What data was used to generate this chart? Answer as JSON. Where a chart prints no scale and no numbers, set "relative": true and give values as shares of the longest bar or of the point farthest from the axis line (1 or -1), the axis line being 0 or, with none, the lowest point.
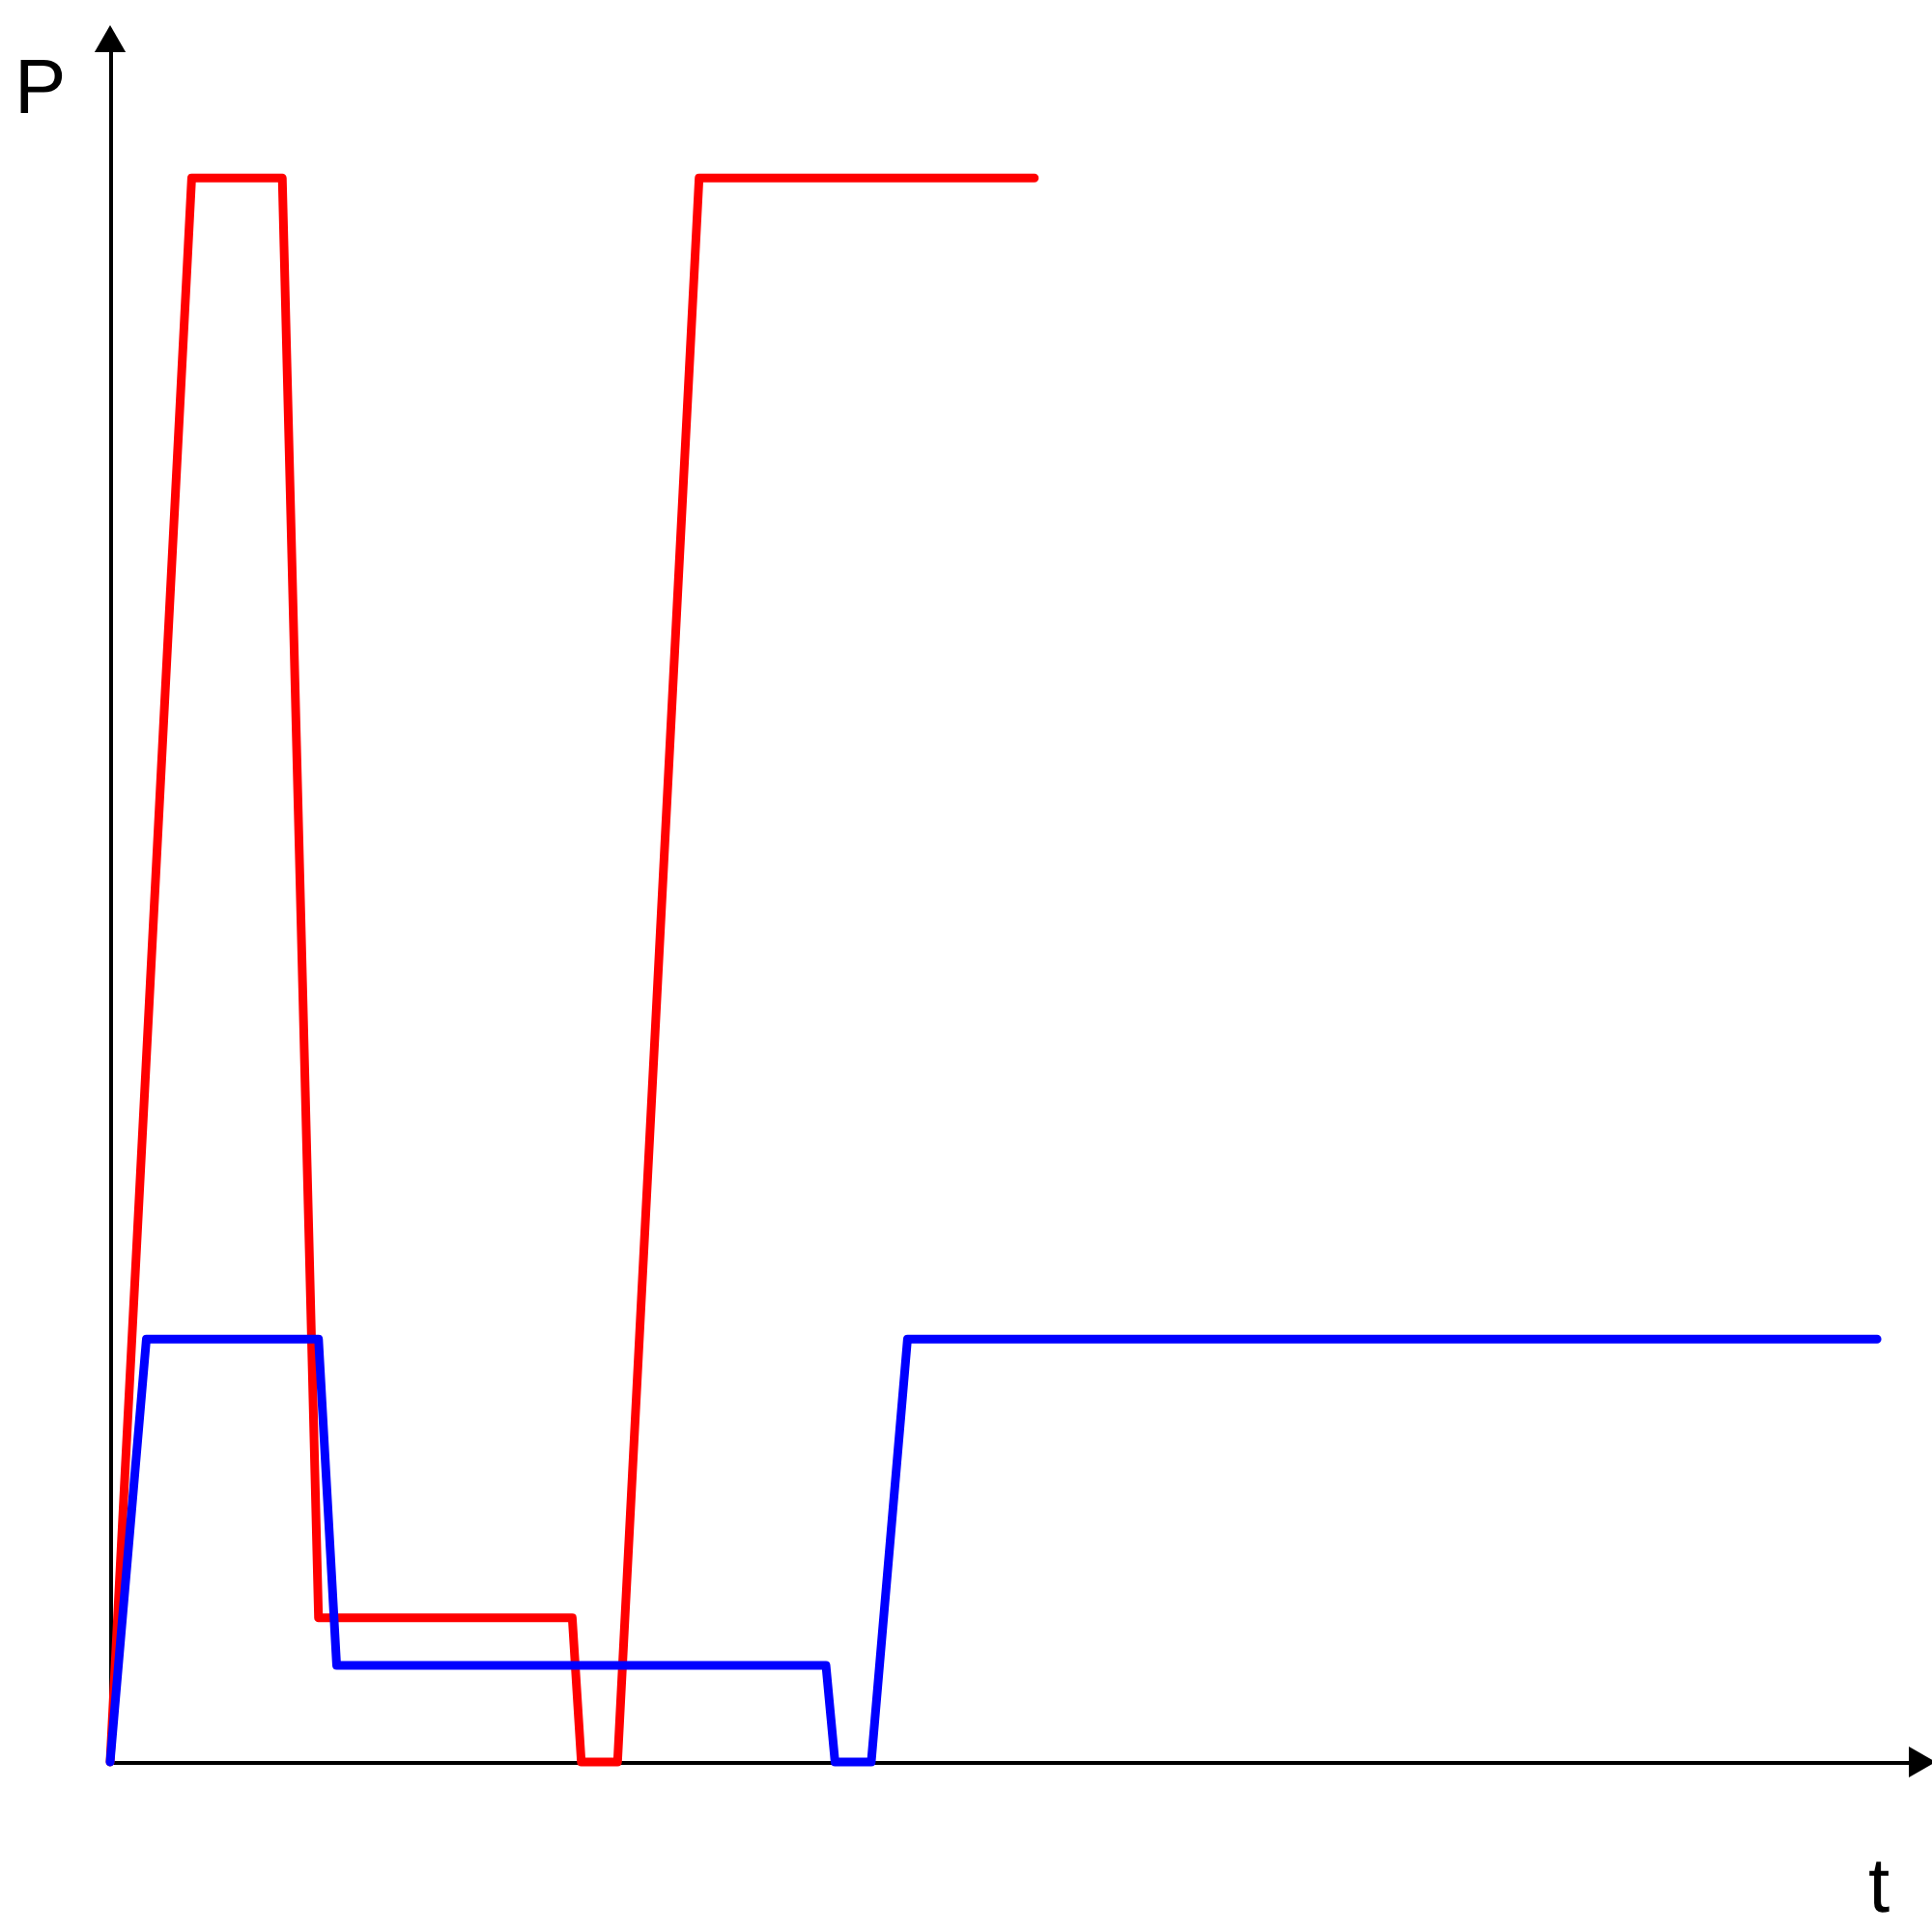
{
  "chart_data": {
    "type": "line",
    "relative": true,
    "xlabel": "t",
    "ylabel": "P",
    "legend": false,
    "grid": false,
    "line_style": "solid",
    "categories": [
      null,
      null,
      null,
      null,
      null,
      null,
      null,
      null,
      null,
      null,
      null,
      null,
      null,
      null,
      null,
      null,
      null,
      null,
      null,
      null,
      null,
      null,
      null,
      null,
      null,
      null,
      null,
      null,
      null,
      null,
      null,
      null,
      null,
      null,
      null,
      null,
      null,
      null,
      null,
      null,
      null,
      null,
      null,
      null,
      null,
      null,
      null,
      null,
      null,
      null,
      null,
      null,
      null,
      null,
      null,
      null,
      null,
      null,
      null,
      null,
      null,
      null,
      null,
      null,
      null,
      null,
      null,
      null,
      null,
      null,
      null,
      null,
      null,
      null,
      null,
      null,
      null,
      null,
      null,
      null,
      null,
      null,
      null,
      null,
      null,
      null,
      null,
      null,
      null,
      null,
      null,
      null,
      null,
      null,
      null,
      null,
      null,
      null,
      null,
      null,
      null,
      null,
      null,
      null,
      null,
      null,
      null,
      null,
      null,
      null,
      null,
      null,
      null,
      null,
      null,
      null,
      null,
      null,
      null,
      null,
      null,
      null,
      null,
      null,
      null,
      null,
      null,
      null,
      null,
      null,
      null,
      null,
      null,
      null,
      null,
      null,
      null,
      null,
      null,
      null,
      null,
      null,
      null,
      null,
      null,
      null,
      null,
      null,
      null,
      null,
      null,
      null,
      null,
      null,
      null,
      null,
      null,
      null,
      null,
      null,
      null,
      null,
      null,
      null,
      null,
      null,
      null,
      null,
      null,
      null,
      null,
      null,
      null,
      null,
      null,
      null,
      null,
      null,
      null,
      null,
      null,
      null,
      null,
      null,
      null,
      null,
      null,
      null,
      null,
      null,
      null,
      null,
      null,
      null,
      null,
      null,
      null,
      null,
      null,
      null,
      null
    ],
    "series": [
      {
        "color": "#ff0000",
        "values": [
          0,
          null,
          null,
          null,
          null,
          null,
          null,
          null,
          null,
          1,
          null,
          null,
          null,
          null,
          null,
          null,
          null,
          null,
          null,
          1,
          null,
          null,
          null,
          0.091,
          null,
          null,
          null,
          null,
          null,
          null,
          null,
          null,
          null,
          null,
          null,
          null,
          null,
          null,
          null,
          null,
          null,
          null,
          null,
          null,
          null,
          null,
          null,
          null,
          null,
          null,
          null,
          0.091,
          0,
          null,
          null,
          null,
          0,
          null,
          null,
          null,
          null,
          null,
          null,
          null,
          null,
          1,
          null,
          null,
          null,
          null,
          null,
          null,
          null,
          null,
          null,
          null,
          null,
          null,
          null,
          null,
          null,
          null,
          null,
          null,
          null,
          null,
          null,
          null,
          null,
          null,
          null,
          null,
          null,
          null,
          null,
          null,
          null,
          null,
          null,
          null,
          null,
          null,
          1,
          null,
          null,
          null,
          null,
          null,
          null,
          null,
          null,
          null,
          null,
          null,
          null,
          null,
          null,
          null,
          null,
          null,
          null,
          null,
          null,
          null,
          null,
          null,
          null,
          null,
          null,
          null,
          null,
          null,
          null,
          null,
          null,
          null,
          null,
          null,
          null,
          null,
          null,
          null,
          null,
          null,
          null,
          null,
          null,
          null,
          null,
          null,
          null,
          null,
          null,
          null,
          null,
          null,
          null,
          null,
          null,
          null,
          null,
          null,
          null,
          null,
          null,
          null,
          null,
          null,
          null,
          null,
          null,
          null,
          null,
          null,
          null,
          null,
          null,
          null,
          null,
          null,
          null,
          null,
          null,
          null,
          null,
          null,
          null,
          null,
          null,
          null,
          null,
          null,
          null,
          null,
          null,
          null,
          null,
          null,
          null,
          null,
          null
        ]
      },
      {
        "color": "#0000ff",
        "values": [
          0,
          null,
          null,
          null,
          0.267,
          null,
          null,
          null,
          null,
          null,
          null,
          null,
          null,
          null,
          null,
          null,
          null,
          null,
          null,
          null,
          null,
          null,
          null,
          0.267,
          null,
          0.061,
          null,
          null,
          null,
          null,
          null,
          null,
          null,
          null,
          null,
          null,
          null,
          null,
          null,
          null,
          null,
          null,
          null,
          null,
          null,
          null,
          null,
          null,
          null,
          null,
          null,
          null,
          null,
          null,
          null,
          null,
          null,
          null,
          null,
          null,
          null,
          null,
          null,
          null,
          null,
          null,
          null,
          null,
          null,
          null,
          null,
          null,
          null,
          null,
          null,
          null,
          null,
          null,
          null,
          0.061,
          0,
          null,
          null,
          null,
          0,
          null,
          null,
          null,
          0.267,
          null,
          null,
          null,
          null,
          null,
          null,
          null,
          null,
          null,
          null,
          null,
          null,
          null,
          null,
          null,
          null,
          null,
          null,
          null,
          null,
          null,
          null,
          null,
          null,
          null,
          null,
          null,
          null,
          null,
          null,
          null,
          null,
          null,
          null,
          null,
          null,
          null,
          null,
          null,
          null,
          null,
          null,
          null,
          null,
          null,
          null,
          null,
          null,
          null,
          null,
          null,
          null,
          null,
          null,
          null,
          null,
          null,
          null,
          null,
          null,
          null,
          null,
          null,
          null,
          null,
          null,
          null,
          null,
          null,
          null,
          null,
          null,
          null,
          null,
          null,
          null,
          null,
          null,
          null,
          null,
          null,
          null,
          null,
          null,
          null,
          null,
          null,
          null,
          null,
          null,
          null,
          null,
          null,
          null,
          null,
          null,
          null,
          null,
          null,
          null,
          null,
          null,
          null,
          null,
          null,
          null,
          0.267,
          null,
          null,
          null,
          null,
          null
        ]
      }
    ]
  }
}
